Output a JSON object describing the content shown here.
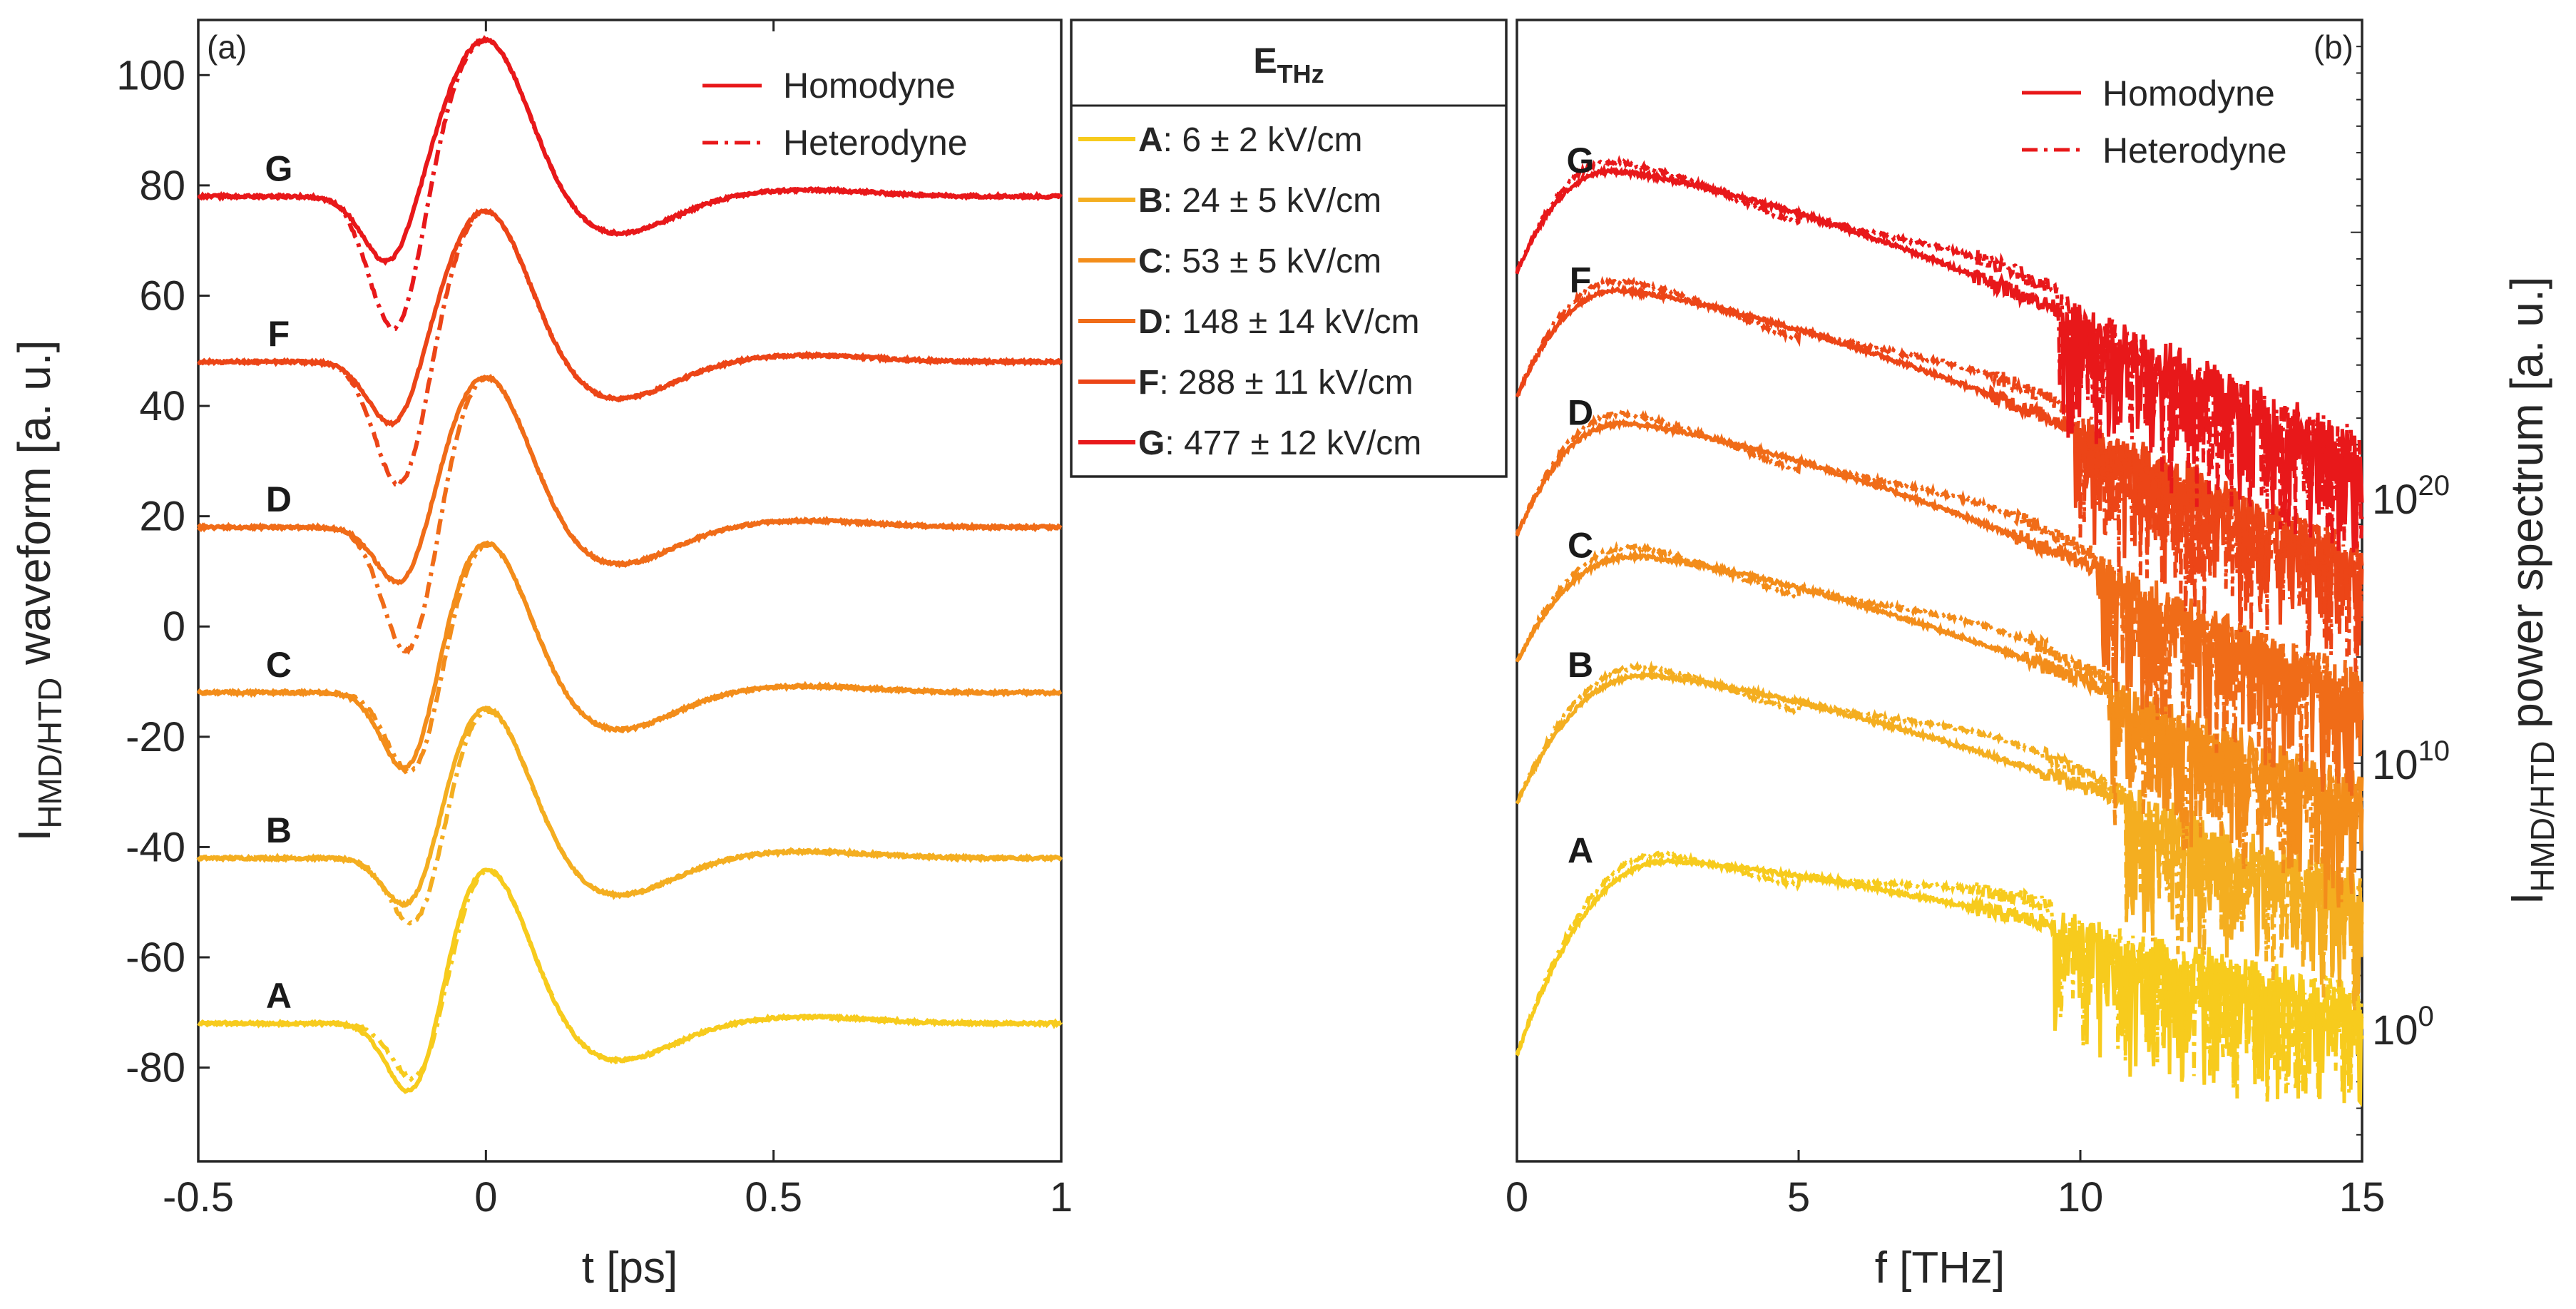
{
  "chart_data": [
    {
      "id": "a",
      "type": "line",
      "panel_label": "(a)",
      "xlabel": "t [ps]",
      "ylabel": {
        "main": "I",
        "sub": "HMD/HTD",
        "rest": " waveform [a. u.]"
      },
      "xlim": [
        -0.5,
        1
      ],
      "ylim": [
        -97,
        110
      ],
      "xticks": [
        -0.5,
        0,
        0.5,
        1
      ],
      "xtick_labels": [
        "-0.5",
        "0",
        "0.5",
        "1"
      ],
      "yticks": [
        -80,
        -60,
        -40,
        -20,
        0,
        20,
        40,
        60,
        80,
        100
      ],
      "ytick_labels": [
        "-80",
        "-60",
        "-40",
        "-20",
        "0",
        "20",
        "40",
        "60",
        "80",
        "100"
      ],
      "legend": {
        "position": "top-right",
        "items": [
          {
            "label": "Homodyne",
            "style": "solid"
          },
          {
            "label": "Heterodyne",
            "style": "dashdot"
          }
        ]
      },
      "series": [
        {
          "name": "A",
          "color": "#f7cb1d",
          "offset": -72,
          "dip_homodyne": -19,
          "dip_heterodyne": -18,
          "peak": 29,
          "dip_time": -0.12
        },
        {
          "name": "B",
          "color": "#f4ae20",
          "offset": -42,
          "dip_homodyne": -14,
          "dip_heterodyne": -19,
          "peak": 28,
          "dip_time": -0.125
        },
        {
          "name": "C",
          "color": "#f38d1a",
          "offset": -12,
          "dip_homodyne": -19,
          "dip_heterodyne": -21,
          "peak": 28,
          "dip_time": -0.13
        },
        {
          "name": "D",
          "color": "#f06c18",
          "offset": 18,
          "dip_homodyne": -14,
          "dip_heterodyne": -28,
          "peak": 28,
          "dip_time": -0.14
        },
        {
          "name": "F",
          "color": "#ec4517",
          "offset": 48,
          "dip_homodyne": -14,
          "dip_heterodyne": -26,
          "peak": 28,
          "dip_time": -0.155
        },
        {
          "name": "G",
          "color": "#e8181a",
          "offset": 78,
          "dip_homodyne": -14,
          "dip_heterodyne": -27,
          "peak": 29,
          "dip_time": -0.165
        }
      ],
      "series_label_x": -0.36
    },
    {
      "id": "b",
      "type": "line",
      "panel_label": "(b)",
      "xlabel": "f [THz]",
      "ylabel": {
        "main": "I",
        "sub": "HMD/HTD",
        "rest": " power spectrum [a. u.]"
      },
      "xlim": [
        0,
        15
      ],
      "yscale": "log",
      "ylim_log10": [
        -5,
        38
      ],
      "xticks": [
        0,
        5,
        10,
        15
      ],
      "xtick_labels": [
        "0",
        "5",
        "10",
        "15"
      ],
      "yticks_log10": [
        0,
        10,
        20
      ],
      "ytick_labels": [
        {
          "base": "10",
          "exp": "0"
        },
        {
          "base": "10",
          "exp": "10"
        },
        {
          "base": "10",
          "exp": "20"
        }
      ],
      "legend": {
        "position": "top-right",
        "items": [
          {
            "label": "Homodyne",
            "style": "solid"
          },
          {
            "label": "Heterodyne",
            "style": "dashdot"
          }
        ]
      },
      "series": [
        {
          "name": "A",
          "color": "#f7cb1d",
          "start_log10": -1,
          "peak_log10": 6.3,
          "peak_f": 2.7,
          "end_log10": 1,
          "noise_f": 9.5
        },
        {
          "name": "B",
          "color": "#f4ae20",
          "start_log10": 8.5,
          "peak_log10": 13.3,
          "peak_f": 2.3,
          "end_log10": 5.2,
          "noise_f": 10.8
        },
        {
          "name": "C",
          "color": "#f38d1a",
          "start_log10": 13.8,
          "peak_log10": 17.8,
          "peak_f": 2.1,
          "end_log10": 8.8,
          "noise_f": 10.5
        },
        {
          "name": "D",
          "color": "#f06c18",
          "start_log10": 18.6,
          "peak_log10": 22.8,
          "peak_f": 1.9,
          "end_log10": 12.8,
          "noise_f": 10.3
        },
        {
          "name": "F",
          "color": "#ec4517",
          "start_log10": 23.8,
          "peak_log10": 27.8,
          "peak_f": 1.8,
          "end_log10": 17.8,
          "noise_f": 9.9
        },
        {
          "name": "G",
          "color": "#e8181a",
          "start_log10": 28.5,
          "peak_log10": 32.3,
          "peak_f": 1.7,
          "end_log10": 21.8,
          "noise_f": 9.6
        }
      ]
    }
  ],
  "legend_box": {
    "title": {
      "main": "E",
      "sub": "THz"
    },
    "entries": [
      {
        "letter": "A",
        "text": ": 6 ± 2 kV/cm",
        "color": "#f7cb1d"
      },
      {
        "letter": "B",
        "text": ": 24 ± 5 kV/cm",
        "color": "#f4ae20"
      },
      {
        "letter": "C",
        "text": ": 53 ± 5 kV/cm",
        "color": "#f38d1a"
      },
      {
        "letter": "D",
        "text": ": 148 ± 14 kV/cm",
        "color": "#f06c18"
      },
      {
        "letter": "F",
        "text": ": 288 ± 11 kV/cm",
        "color": "#ec4517"
      },
      {
        "letter": "G",
        "text": ": 477 ± 12 kV/cm",
        "color": "#e8181a"
      }
    ]
  },
  "legend_line_color": "#e8181a"
}
